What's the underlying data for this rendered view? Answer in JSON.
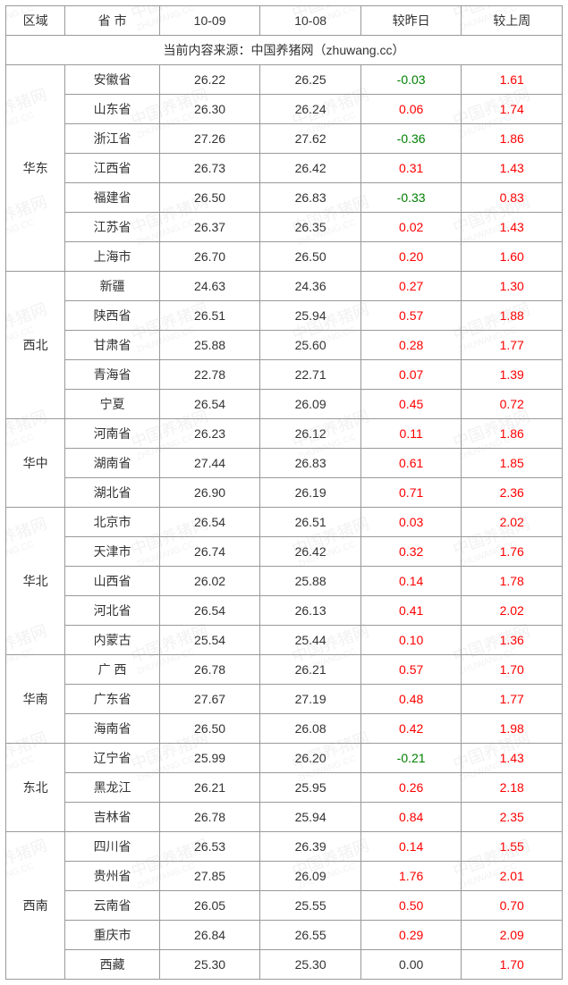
{
  "headers": {
    "region": "区域",
    "province": "省 市",
    "col1": "10-09",
    "col2": "10-08",
    "vs_yesterday": "较昨日",
    "vs_lastweek": "较上周"
  },
  "source_text": "当前内容来源：中国养猪网（zhuwang.cc）",
  "watermark": {
    "main": "中国养猪网",
    "sub": "ZHUWANG.CC"
  },
  "colors": {
    "border": "#999999",
    "text": "#333333",
    "positive": "#ff0000",
    "negative": "#008000",
    "background": "#ffffff"
  },
  "regions": [
    {
      "name": "华东",
      "rows": [
        {
          "province": "安徽省",
          "c1": "26.22",
          "c2": "26.25",
          "dy": "-0.03",
          "dw": "1.61"
        },
        {
          "province": "山东省",
          "c1": "26.30",
          "c2": "26.24",
          "dy": "0.06",
          "dw": "1.74"
        },
        {
          "province": "浙江省",
          "c1": "27.26",
          "c2": "27.62",
          "dy": "-0.36",
          "dw": "1.86"
        },
        {
          "province": "江西省",
          "c1": "26.73",
          "c2": "26.42",
          "dy": "0.31",
          "dw": "1.43"
        },
        {
          "province": "福建省",
          "c1": "26.50",
          "c2": "26.83",
          "dy": "-0.33",
          "dw": "0.83"
        },
        {
          "province": "江苏省",
          "c1": "26.37",
          "c2": "26.35",
          "dy": "0.02",
          "dw": "1.43"
        },
        {
          "province": "上海市",
          "c1": "26.70",
          "c2": "26.50",
          "dy": "0.20",
          "dw": "1.60"
        }
      ]
    },
    {
      "name": "西北",
      "rows": [
        {
          "province": "新疆",
          "c1": "24.63",
          "c2": "24.36",
          "dy": "0.27",
          "dw": "1.30"
        },
        {
          "province": "陕西省",
          "c1": "26.51",
          "c2": "25.94",
          "dy": "0.57",
          "dw": "1.88"
        },
        {
          "province": "甘肃省",
          "c1": "25.88",
          "c2": "25.60",
          "dy": "0.28",
          "dw": "1.77"
        },
        {
          "province": "青海省",
          "c1": "22.78",
          "c2": "22.71",
          "dy": "0.07",
          "dw": "1.39"
        },
        {
          "province": "宁夏",
          "c1": "26.54",
          "c2": "26.09",
          "dy": "0.45",
          "dw": "0.72"
        }
      ]
    },
    {
      "name": "华中",
      "rows": [
        {
          "province": "河南省",
          "c1": "26.23",
          "c2": "26.12",
          "dy": "0.11",
          "dw": "1.86"
        },
        {
          "province": "湖南省",
          "c1": "27.44",
          "c2": "26.83",
          "dy": "0.61",
          "dw": "1.85"
        },
        {
          "province": "湖北省",
          "c1": "26.90",
          "c2": "26.19",
          "dy": "0.71",
          "dw": "2.36"
        }
      ]
    },
    {
      "name": "华北",
      "rows": [
        {
          "province": "北京市",
          "c1": "26.54",
          "c2": "26.51",
          "dy": "0.03",
          "dw": "2.02"
        },
        {
          "province": "天津市",
          "c1": "26.74",
          "c2": "26.42",
          "dy": "0.32",
          "dw": "1.76"
        },
        {
          "province": "山西省",
          "c1": "26.02",
          "c2": "25.88",
          "dy": "0.14",
          "dw": "1.78"
        },
        {
          "province": "河北省",
          "c1": "26.54",
          "c2": "26.13",
          "dy": "0.41",
          "dw": "2.02"
        },
        {
          "province": "内蒙古",
          "c1": "25.54",
          "c2": "25.44",
          "dy": "0.10",
          "dw": "1.36"
        }
      ]
    },
    {
      "name": "华南",
      "rows": [
        {
          "province": "广 西",
          "c1": "26.78",
          "c2": "26.21",
          "dy": "0.57",
          "dw": "1.70"
        },
        {
          "province": "广东省",
          "c1": "27.67",
          "c2": "27.19",
          "dy": "0.48",
          "dw": "1.77"
        },
        {
          "province": "海南省",
          "c1": "26.50",
          "c2": "26.08",
          "dy": "0.42",
          "dw": "1.98"
        }
      ]
    },
    {
      "name": "东北",
      "rows": [
        {
          "province": "辽宁省",
          "c1": "25.99",
          "c2": "26.20",
          "dy": "-0.21",
          "dw": "1.43"
        },
        {
          "province": "黑龙江",
          "c1": "26.21",
          "c2": "25.95",
          "dy": "0.26",
          "dw": "2.18"
        },
        {
          "province": "吉林省",
          "c1": "26.78",
          "c2": "25.94",
          "dy": "0.84",
          "dw": "2.35"
        }
      ]
    },
    {
      "name": "西南",
      "rows": [
        {
          "province": "四川省",
          "c1": "26.53",
          "c2": "26.39",
          "dy": "0.14",
          "dw": "1.55"
        },
        {
          "province": "贵州省",
          "c1": "27.85",
          "c2": "26.09",
          "dy": "1.76",
          "dw": "2.01"
        },
        {
          "province": "云南省",
          "c1": "26.05",
          "c2": "25.55",
          "dy": "0.50",
          "dw": "0.70"
        },
        {
          "province": "重庆市",
          "c1": "26.84",
          "c2": "26.55",
          "dy": "0.29",
          "dw": "2.09"
        },
        {
          "province": "西藏",
          "c1": "25.30",
          "c2": "25.30",
          "dy": "0.00",
          "dw": "1.70"
        }
      ]
    }
  ]
}
